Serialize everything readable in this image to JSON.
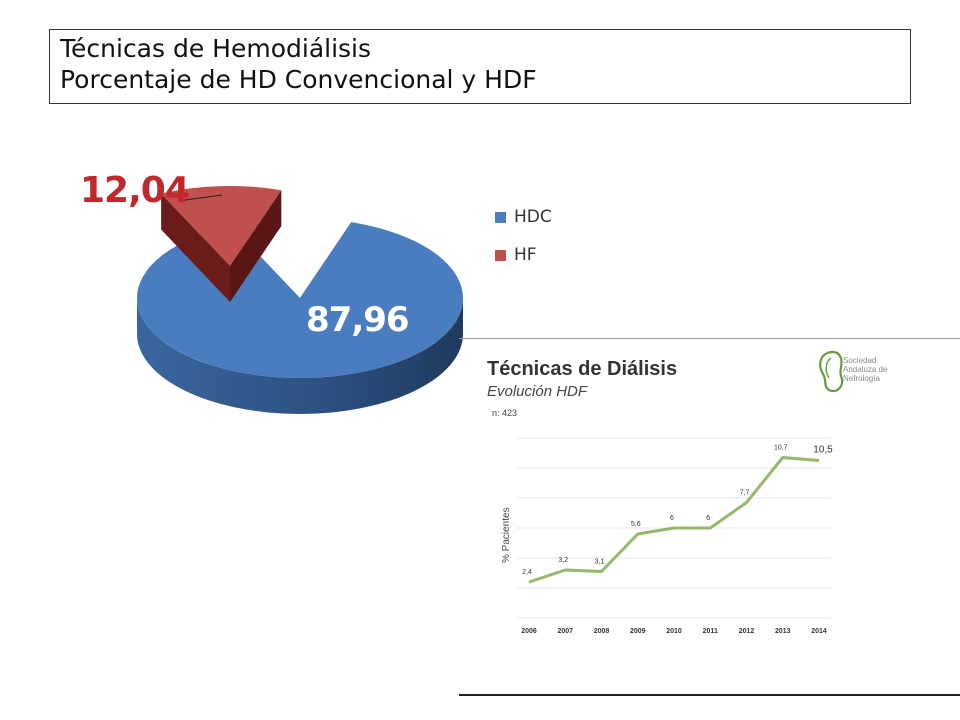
{
  "title_box": {
    "line1": "Técnicas de Hemodiálisis",
    "line2": "Porcentaje de HD Convencional y HDF"
  },
  "chart_data": [
    {
      "type": "pie",
      "title": "",
      "labels": [
        "HDC",
        "HF"
      ],
      "values": [
        87.96,
        12.04
      ],
      "value_labels": [
        "87,96",
        "12,04"
      ],
      "colors": [
        "#4a7dbf",
        "#c0504d"
      ],
      "exploded": "HF",
      "legend_position": "right"
    },
    {
      "type": "line",
      "title": "Técnicas de Diálisis",
      "subtitle": "Evolución HDF",
      "note": "n: 423",
      "xlabel": "",
      "ylabel": "% Pacientes",
      "x": [
        "2006",
        "2007",
        "2008",
        "2009",
        "2010",
        "2011",
        "2012",
        "2013",
        "2014"
      ],
      "series": [
        {
          "values": [
            2.4,
            3.2,
            3.1,
            5.6,
            6,
            6,
            7.7,
            10.7,
            10.5
          ],
          "labels": [
            "2,4",
            "3,2",
            "3,1",
            "5,6",
            "6",
            "6",
            "7,7",
            "10,7",
            "10,5"
          ]
        }
      ],
      "ylim": [
        0,
        12
      ],
      "grid": true,
      "line_color": "#94b96b"
    }
  ],
  "logo": {
    "lines": [
      "Sociedad",
      "Andaluza de",
      "Nefrología"
    ],
    "color": "#6a9a3c"
  }
}
